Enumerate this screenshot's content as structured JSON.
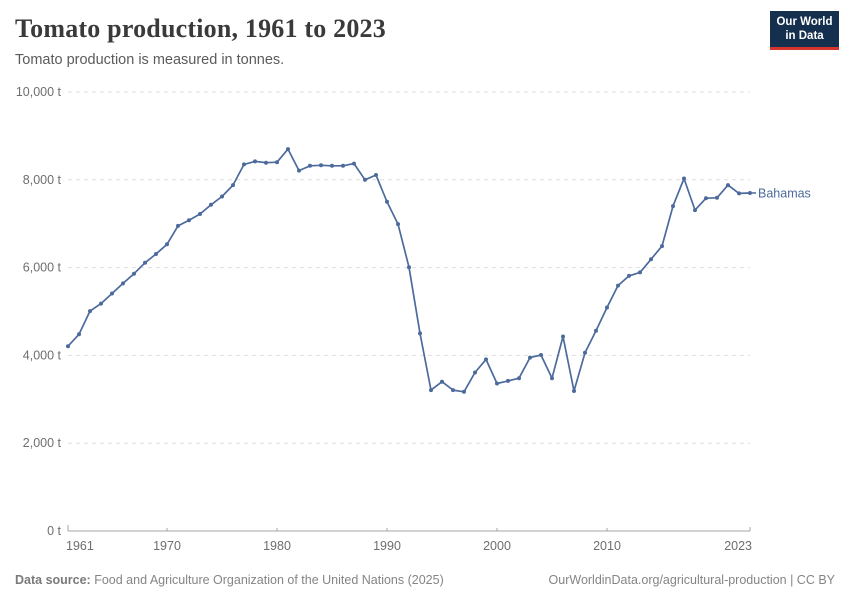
{
  "header": {
    "title": "Tomato production, 1961 to 2023",
    "subtitle": "Tomato production is measured in tonnes."
  },
  "logo": {
    "line1": "Our World",
    "line2": "in Data",
    "bg_color": "#15304e",
    "accent_color": "#d7352c"
  },
  "footer": {
    "source_label": "Data source:",
    "source_text": "Food and Agriculture Organization of the United Nations (2025)",
    "link_text": "OurWorldinData.org/agricultural-production | CC BY"
  },
  "chart_data": {
    "type": "line",
    "title": "Tomato production, 1961 to 2023",
    "subtitle": "Tomato production is measured in tonnes.",
    "xlabel": "",
    "ylabel": "tonnes",
    "xlim": [
      1961,
      2023
    ],
    "ylim": [
      0,
      10000
    ],
    "grid": "horizontal-dashed",
    "legend_position": "end-of-line-label",
    "yticks": [
      {
        "value": 0,
        "label": "0 t"
      },
      {
        "value": 2000,
        "label": "2,000 t"
      },
      {
        "value": 4000,
        "label": "4,000 t"
      },
      {
        "value": 6000,
        "label": "6,000 t"
      },
      {
        "value": 8000,
        "label": "8,000 t"
      },
      {
        "value": 10000,
        "label": "10,000 t"
      }
    ],
    "xticks": [
      {
        "value": 1961,
        "label": "1961"
      },
      {
        "value": 1970,
        "label": "1970"
      },
      {
        "value": 1980,
        "label": "1980"
      },
      {
        "value": 1990,
        "label": "1990"
      },
      {
        "value": 2000,
        "label": "2000"
      },
      {
        "value": 2010,
        "label": "2010"
      },
      {
        "value": 2023,
        "label": "2023"
      }
    ],
    "series": [
      {
        "name": "Bahamas",
        "color": "#4c6a9c",
        "x": [
          1961,
          1962,
          1963,
          1964,
          1965,
          1966,
          1967,
          1968,
          1969,
          1970,
          1971,
          1972,
          1973,
          1974,
          1975,
          1976,
          1977,
          1978,
          1979,
          1980,
          1981,
          1982,
          1983,
          1984,
          1985,
          1986,
          1987,
          1988,
          1989,
          1990,
          1991,
          1992,
          1993,
          1994,
          1995,
          1996,
          1997,
          1998,
          1999,
          2000,
          2001,
          2002,
          2003,
          2004,
          2005,
          2006,
          2007,
          2008,
          2009,
          2010,
          2011,
          2012,
          2013,
          2014,
          2015,
          2016,
          2017,
          2018,
          2019,
          2020,
          2021,
          2022,
          2023
        ],
        "values": [
          4210,
          4480,
          5010,
          5180,
          5410,
          5640,
          5860,
          6110,
          6310,
          6530,
          6950,
          7080,
          7220,
          7430,
          7620,
          7880,
          8350,
          8420,
          8390,
          8400,
          8700,
          8210,
          8320,
          8330,
          8320,
          8320,
          8370,
          8000,
          8110,
          7500,
          6990,
          6010,
          4500,
          3210,
          3400,
          3210,
          3170,
          3610,
          3910,
          3360,
          3420,
          3480,
          3950,
          4010,
          3480,
          4430,
          3190,
          4060,
          4560,
          5090,
          5590,
          5810,
          5890,
          6190,
          6490,
          7400,
          8030,
          7310,
          7580,
          7590,
          7880,
          7690,
          7700
        ]
      }
    ]
  }
}
